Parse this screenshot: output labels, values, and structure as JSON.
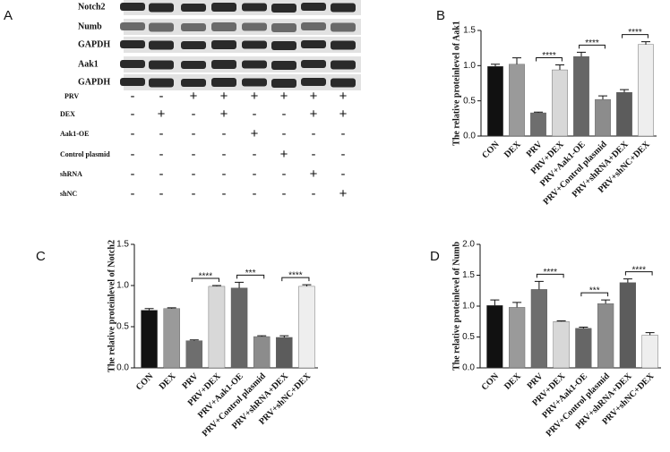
{
  "blot": {
    "panel": "A",
    "rows": [
      "Notch2",
      "Numb",
      "GAPDH",
      "Aak1",
      "GAPDH"
    ],
    "treatments": [
      {
        "name": "PRV",
        "signs": [
          "-",
          "-",
          "+",
          "+",
          "+",
          "+",
          "+",
          "+"
        ]
      },
      {
        "name": "DEX",
        "signs": [
          "-",
          "+",
          "-",
          "+",
          "-",
          "-",
          "+",
          "+"
        ]
      },
      {
        "name": "Aak1-OE",
        "signs": [
          "-",
          "-",
          "-",
          "-",
          "+",
          "-",
          "-",
          "-"
        ]
      },
      {
        "name": "Control plasmid",
        "signs": [
          "-",
          "-",
          "-",
          "-",
          "-",
          "+",
          "-",
          "-"
        ]
      },
      {
        "name": "shRNA",
        "signs": [
          "-",
          "-",
          "-",
          "-",
          "-",
          "-",
          "+",
          "-"
        ]
      },
      {
        "name": "shNC",
        "signs": [
          "-",
          "-",
          "-",
          "-",
          "-",
          "-",
          "-",
          "+"
        ]
      }
    ]
  },
  "chart_data": [
    {
      "type": "bar",
      "panel": "B",
      "y_label": "The relative proteinlevel of Aak1",
      "categories": [
        "CON",
        "DEX",
        "PRV",
        "PRV+DEX",
        "PRV+Aak1-OE",
        "PRV+Control plasmid",
        "PRV+shRNA+DEX",
        "PRV+shNC+DEX"
      ],
      "values": [
        0.99,
        1.02,
        0.33,
        0.94,
        1.13,
        0.52,
        0.62,
        1.3
      ],
      "errors": [
        0.03,
        0.09,
        0.01,
        0.07,
        0.06,
        0.05,
        0.04,
        0.04
      ],
      "colors": [
        "#111111",
        "#9a9a9a",
        "#6e6e6e",
        "#d8d8d8",
        "#666666",
        "#8c8c8c",
        "#5c5c5c",
        "#eeeeee"
      ],
      "ylim": [
        0,
        1.5
      ],
      "yticks": [
        {
          "value": 0,
          "label": "0.0"
        },
        0.5,
        {
          "value": 1,
          "label": "1.0"
        },
        1.5
      ],
      "annotations": [
        {
          "between": [
            "PRV",
            "PRV+DEX"
          ],
          "text": "****"
        },
        {
          "between": [
            "PRV+Aak1-OE",
            "PRV+Control plasmid"
          ],
          "text": "****"
        },
        {
          "between": [
            "PRV+shRNA+DEX",
            "PRV+shNC+DEX"
          ],
          "text": "****"
        }
      ]
    },
    {
      "type": "bar",
      "panel": "C",
      "y_label": "The relative proteinlevel of Notch2",
      "categories": [
        "CON",
        "DEX",
        "PRV",
        "PRV+DEX",
        "PRV+Aak1-OE",
        "PRV+Control plasmid",
        "PRV+shRNA+DEX",
        "PRV+shNC+DEX"
      ],
      "values": [
        0.7,
        0.72,
        0.33,
        0.99,
        0.97,
        0.38,
        0.37,
        0.99
      ],
      "errors": [
        0.02,
        0.01,
        0.01,
        0.01,
        0.07,
        0.01,
        0.02,
        0.02
      ],
      "colors": [
        "#111111",
        "#9a9a9a",
        "#6e6e6e",
        "#d8d8d8",
        "#666666",
        "#8c8c8c",
        "#5c5c5c",
        "#eeeeee"
      ],
      "ylim": [
        0,
        1.5
      ],
      "yticks": [
        {
          "value": 0,
          "label": "0.0"
        },
        0.5,
        {
          "value": 1,
          "label": "1.0"
        },
        1.5
      ],
      "annotations": [
        {
          "between": [
            "PRV",
            "PRV+DEX"
          ],
          "text": "****"
        },
        {
          "between": [
            "PRV+Aak1-OE",
            "PRV+Control plasmid"
          ],
          "text": "***"
        },
        {
          "between": [
            "PRV+shRNA+DEX",
            "PRV+shNC+DEX"
          ],
          "text": "****"
        }
      ]
    },
    {
      "type": "bar",
      "panel": "D",
      "y_label": "The relative proteinlevel of Numb",
      "categories": [
        "CON",
        "DEX",
        "PRV",
        "PRV+DEX",
        "PRV+Aak1-OE",
        "PRV+Control plasmid",
        "PRV+shRNA+DEX",
        "PRV+shNC+DEX"
      ],
      "values": [
        1.01,
        0.98,
        1.27,
        0.75,
        0.64,
        1.04,
        1.38,
        0.53
      ],
      "errors": [
        0.09,
        0.08,
        0.13,
        0.01,
        0.02,
        0.06,
        0.06,
        0.04
      ],
      "colors": [
        "#111111",
        "#9a9a9a",
        "#6e6e6e",
        "#d8d8d8",
        "#666666",
        "#8c8c8c",
        "#5c5c5c",
        "#eeeeee"
      ],
      "ylim": [
        0,
        2
      ],
      "yticks": [
        {
          "value": 0,
          "label": "0.0"
        },
        0.5,
        {
          "value": 1,
          "label": "1.0"
        },
        1.5,
        {
          "value": 2,
          "label": "2.0"
        }
      ],
      "annotations": [
        {
          "between": [
            "PRV",
            "PRV+DEX"
          ],
          "text": "****"
        },
        {
          "between": [
            "PRV+Aak1-OE",
            "PRV+Control plasmid"
          ],
          "text": "***"
        },
        {
          "between": [
            "PRV+shRNA+DEX",
            "PRV+shNC+DEX"
          ],
          "text": "****"
        }
      ]
    }
  ]
}
